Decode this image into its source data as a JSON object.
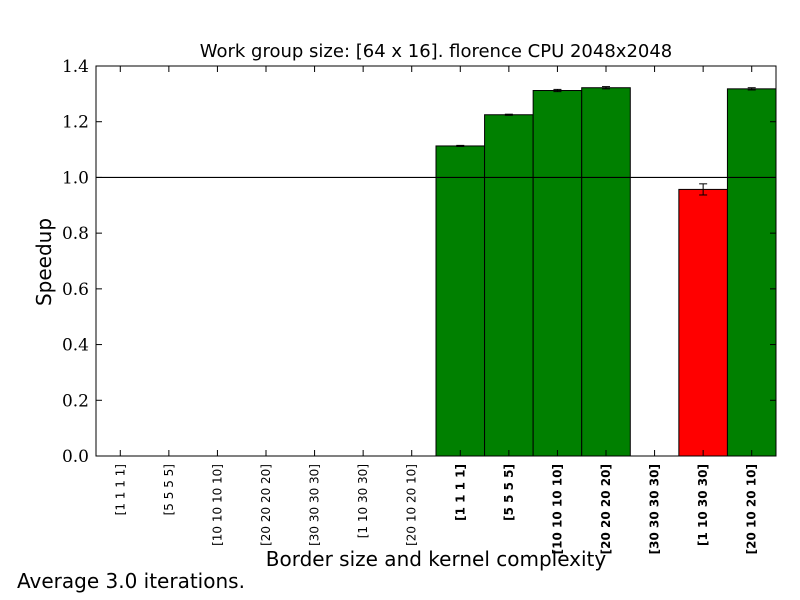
{
  "chart_data": {
    "type": "bar",
    "title": "Work group size: [64 x 16]. florence CPU 2048x2048",
    "xlabel": "Border size and kernel complexity",
    "ylabel": "Speedup",
    "ylim": [
      0,
      1.4
    ],
    "yticks": [
      "0.0",
      "0.2",
      "0.4",
      "0.6",
      "0.8",
      "1.0",
      "1.2",
      "1.4"
    ],
    "reference_line": 1.0,
    "grid": false,
    "categories": [
      "[1 1 1 1]",
      "[5 5 5 5]",
      "[10 10 10 10]",
      "[20 20 20 20]",
      "[30 30 30 30]",
      "[1 10 30 30]",
      "[20 10 20 10]",
      "[1 1 1 1]",
      "[5 5 5 5]",
      "[10 10 10 10]",
      "[20 20 20 20]",
      "[30 30 30 30]",
      "[1 10 30 30]",
      "[20 10 20 10]"
    ],
    "bold_categories": [
      false,
      false,
      false,
      false,
      false,
      false,
      false,
      true,
      true,
      true,
      true,
      true,
      true,
      true
    ],
    "values": [
      null,
      null,
      null,
      null,
      null,
      null,
      null,
      1.113,
      1.225,
      1.312,
      1.322,
      null,
      0.957,
      1.318
    ],
    "errors": [
      null,
      null,
      null,
      null,
      null,
      null,
      null,
      0.002,
      0.002,
      0.004,
      0.004,
      null,
      0.02,
      0.004
    ],
    "colors": {
      "above_one": "#008000",
      "below_one": "#ff0000",
      "edge": "#000000"
    }
  },
  "footnote": "Average 3.0 iterations."
}
